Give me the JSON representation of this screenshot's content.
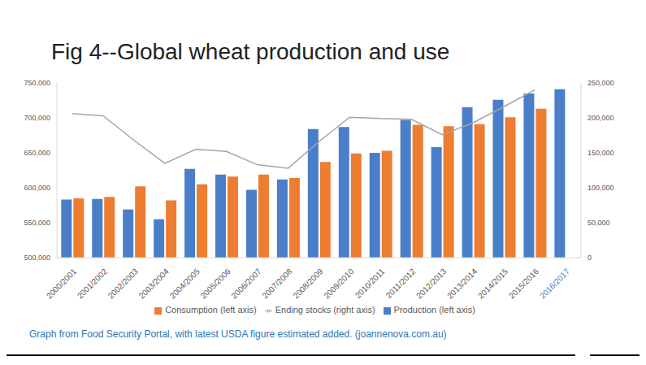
{
  "chart_data": {
    "type": "bar",
    "title": "Fig 4--Global wheat production and use",
    "annotations": [
      "Graph from Food Security Portal, with latest USDA figure estimated added. (joannenova.com.au)"
    ],
    "categories": [
      "2000/2001",
      "2001/2002",
      "2002/2003",
      "2003/2004",
      "2004/2005",
      "2005/2006",
      "2006/2007",
      "2007/2008",
      "2008/2009",
      "2009/2010",
      "2010/2011",
      "2011/2012",
      "2012/2013",
      "2013/2014",
      "2014/2015",
      "2015/2016",
      "2016/2017"
    ],
    "series": [
      {
        "name": "Production (left axis)",
        "type": "bar",
        "color": "#4a7ec9",
        "values": [
          583000,
          584000,
          569000,
          555000,
          627000,
          619000,
          597000,
          612000,
          684000,
          687000,
          650000,
          697000,
          658000,
          715000,
          726000,
          735000,
          741000
        ]
      },
      {
        "name": "Consumption (left axis)",
        "type": "bar",
        "color": "#ed7d31",
        "values": [
          585000,
          587000,
          602000,
          582000,
          605000,
          616000,
          619000,
          614000,
          637000,
          649000,
          653000,
          690000,
          688000,
          691000,
          701000,
          713000,
          null
        ]
      },
      {
        "name": "Ending stocks (right axis)",
        "type": "line",
        "axis": "y2",
        "color": "#a5a5a5",
        "values": [
          206000,
          203000,
          168000,
          135000,
          155000,
          152000,
          133000,
          128000,
          166000,
          201000,
          199000,
          198000,
          176000,
          193000,
          216000,
          240000,
          null
        ]
      }
    ],
    "ylim": [
      500000,
      750000
    ],
    "yticks": [
      {
        "value": 500000,
        "label": "500,000"
      },
      {
        "value": 550000,
        "label": "550,000"
      },
      {
        "value": 600000,
        "label": "600,000"
      },
      {
        "value": 650000,
        "label": "650,000"
      },
      {
        "value": 700000,
        "label": "700,000"
      },
      {
        "value": 750000,
        "label": "750,000"
      }
    ],
    "y2lim": [
      0,
      250000
    ],
    "y2ticks": [
      0,
      {
        "value": 50000,
        "label": "50,000"
      },
      {
        "value": 100000,
        "label": "100,000"
      },
      {
        "value": 150000,
        "label": "150,000"
      },
      {
        "value": 200000,
        "label": "200,000"
      },
      {
        "value": 250000,
        "label": "250,000"
      }
    ],
    "grid": false,
    "legend": "bottom"
  }
}
